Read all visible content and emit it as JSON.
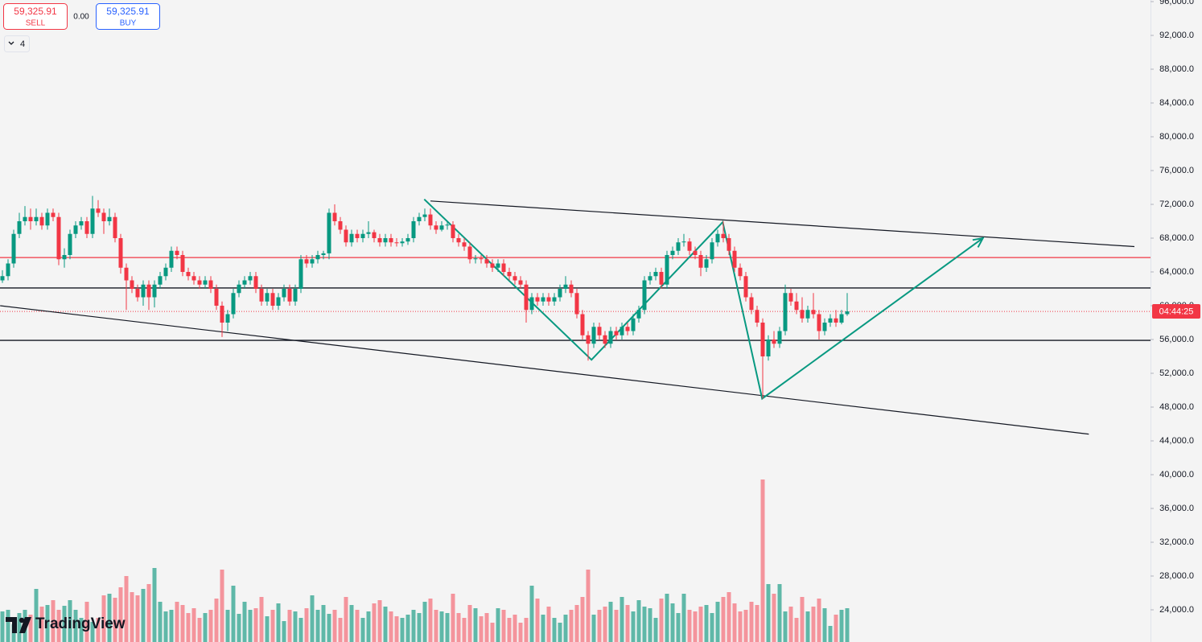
{
  "header": {
    "sell_price": "59,325.91",
    "sell_label": "SELL",
    "spread": "0.00",
    "buy_price": "59,325.91",
    "buy_label": "BUY",
    "interval_count": "4",
    "countdown": "04:44:25",
    "brand": "TradingView"
  },
  "chart_data": {
    "type": "candlestick",
    "ylim": [
      20190,
      96190
    ],
    "yticks": [
      {
        "value": 96000,
        "label": "96,000.0"
      },
      {
        "value": 92000,
        "label": "92,000.0"
      },
      {
        "value": 88000,
        "label": "88,000.0"
      },
      {
        "value": 84000,
        "label": "84,000.0"
      },
      {
        "value": 80000,
        "label": "80,000.0"
      },
      {
        "value": 76000,
        "label": "76,000.0"
      },
      {
        "value": 72000,
        "label": "72,000.0"
      },
      {
        "value": 68000,
        "label": "68,000.0"
      },
      {
        "value": 64000,
        "label": "64,000.0"
      },
      {
        "value": 60000,
        "label": "60,000.0"
      },
      {
        "value": 56000,
        "label": "56,000.0"
      },
      {
        "value": 52000,
        "label": "52,000.0"
      },
      {
        "value": 48000,
        "label": "48,000.0"
      },
      {
        "value": 44000,
        "label": "44,000.0"
      },
      {
        "value": 40000,
        "label": "40,000.0"
      },
      {
        "value": 36000,
        "label": "36,000.0"
      },
      {
        "value": 32000,
        "label": "32,000.0"
      },
      {
        "value": 28000,
        "label": "28,000.0"
      },
      {
        "value": 24000,
        "label": "24,000.0"
      }
    ],
    "grid": false,
    "up_color": "#089981",
    "down_color": "#f23645",
    "volume_up_color": "#5fb8a8",
    "volume_down_color": "#f4949c",
    "last_price": 59325.91,
    "last_price_color": "#f23645",
    "ohlc": [
      [
        63000,
        64200,
        62700,
        63500
      ],
      [
        63500,
        65500,
        63000,
        65000
      ],
      [
        65000,
        69000,
        64500,
        68500
      ],
      [
        68500,
        71000,
        68000,
        70000
      ],
      [
        70000,
        71800,
        69500,
        70500
      ],
      [
        70500,
        71500,
        69000,
        70000
      ],
      [
        70000,
        71500,
        69500,
        70500
      ],
      [
        70500,
        71000,
        69000,
        69500
      ],
      [
        69500,
        71500,
        69000,
        71000
      ],
      [
        71000,
        71500,
        70000,
        70500
      ],
      [
        70500,
        71000,
        64800,
        65500
      ],
      [
        65500,
        66800,
        64500,
        66000
      ],
      [
        66000,
        69000,
        65500,
        68500
      ],
      [
        68500,
        70000,
        68000,
        69500
      ],
      [
        69500,
        70500,
        69000,
        70000
      ],
      [
        70000,
        70500,
        68000,
        68500
      ],
      [
        68500,
        73000,
        68000,
        71500
      ],
      [
        71500,
        72500,
        70500,
        71000
      ],
      [
        71000,
        71500,
        68500,
        70000
      ],
      [
        70000,
        71500,
        69500,
        70500
      ],
      [
        70500,
        71000,
        67500,
        68000
      ],
      [
        68000,
        68500,
        63800,
        64500
      ],
      [
        64500,
        65000,
        59500,
        63000
      ],
      [
        63000,
        63500,
        61500,
        62000
      ],
      [
        62000,
        62500,
        60500,
        61000
      ],
      [
        61000,
        63000,
        60000,
        62500
      ],
      [
        62500,
        63000,
        59500,
        61000
      ],
      [
        61000,
        63000,
        59800,
        62500
      ],
      [
        62500,
        64000,
        62000,
        63500
      ],
      [
        63500,
        65000,
        63000,
        64500
      ],
      [
        64500,
        67000,
        64000,
        66500
      ],
      [
        66500,
        67000,
        65500,
        66000
      ],
      [
        66000,
        66500,
        63500,
        64000
      ],
      [
        64000,
        64500,
        63000,
        63500
      ],
      [
        63500,
        64000,
        62500,
        63000
      ],
      [
        63000,
        63500,
        62000,
        62500
      ],
      [
        62500,
        63500,
        62000,
        63000
      ],
      [
        63000,
        63500,
        61500,
        62000
      ],
      [
        62000,
        62500,
        59500,
        60000
      ],
      [
        60000,
        60500,
        56300,
        58000
      ],
      [
        58000,
        59500,
        57000,
        59000
      ],
      [
        59000,
        62000,
        58500,
        61500
      ],
      [
        61500,
        63000,
        61000,
        62500
      ],
      [
        62500,
        63500,
        62000,
        63000
      ],
      [
        63000,
        64000,
        62500,
        63500
      ],
      [
        63500,
        64000,
        61500,
        62000
      ],
      [
        62000,
        62500,
        60000,
        60500
      ],
      [
        60500,
        62000,
        60000,
        61500
      ],
      [
        61500,
        62000,
        59500,
        60000
      ],
      [
        60000,
        61500,
        59500,
        61000
      ],
      [
        61000,
        62500,
        60500,
        62000
      ],
      [
        62000,
        62500,
        60000,
        60500
      ],
      [
        60500,
        62500,
        60000,
        62000
      ],
      [
        62000,
        66000,
        61500,
        65500
      ],
      [
        65500,
        66000,
        64500,
        65000
      ],
      [
        65000,
        66000,
        64500,
        65500
      ],
      [
        65500,
        66500,
        65000,
        66000
      ],
      [
        66000,
        66500,
        65500,
        66200
      ],
      [
        66200,
        71500,
        65500,
        71000
      ],
      [
        71000,
        72000,
        69500,
        70000
      ],
      [
        70000,
        70500,
        68500,
        69000
      ],
      [
        69000,
        69500,
        67000,
        67500
      ],
      [
        67500,
        69000,
        67000,
        68500
      ],
      [
        68500,
        69000,
        67500,
        68000
      ],
      [
        68000,
        69000,
        67500,
        68500
      ],
      [
        68500,
        70000,
        68000,
        68700
      ],
      [
        68700,
        69000,
        67500,
        68000
      ],
      [
        68000,
        68500,
        67000,
        67500
      ],
      [
        67500,
        68500,
        67000,
        68000
      ],
      [
        68000,
        68500,
        67000,
        67500
      ],
      [
        67500,
        68000,
        67000,
        67400
      ],
      [
        67400,
        68000,
        67000,
        67600
      ],
      [
        67600,
        68500,
        67200,
        68000
      ],
      [
        68000,
        70500,
        67500,
        70000
      ],
      [
        70000,
        71000,
        69500,
        70500
      ],
      [
        70500,
        71500,
        70000,
        70800
      ],
      [
        70800,
        71500,
        69000,
        69500
      ],
      [
        69500,
        70000,
        68500,
        69000
      ],
      [
        69000,
        70000,
        68800,
        69500
      ],
      [
        69500,
        70000,
        69000,
        69600
      ],
      [
        69600,
        70000,
        67500,
        68000
      ],
      [
        68000,
        68500,
        67000,
        67500
      ],
      [
        67500,
        68000,
        66500,
        67000
      ],
      [
        67000,
        67500,
        65000,
        65500
      ],
      [
        65500,
        66000,
        65000,
        65600
      ],
      [
        65600,
        66000,
        65000,
        65500
      ],
      [
        65500,
        66000,
        64500,
        65000
      ],
      [
        65000,
        65500,
        64000,
        64500
      ],
      [
        64500,
        65500,
        64000,
        65000
      ],
      [
        65000,
        65500,
        63500,
        64000
      ],
      [
        64000,
        64500,
        63000,
        63500
      ],
      [
        63500,
        64000,
        62500,
        63000
      ],
      [
        63000,
        63500,
        62000,
        62500
      ],
      [
        62500,
        63000,
        58000,
        59500
      ],
      [
        59500,
        61500,
        59000,
        61000
      ],
      [
        61000,
        61500,
        60000,
        60500
      ],
      [
        60500,
        61500,
        60000,
        61000
      ],
      [
        61000,
        61500,
        60000,
        60500
      ],
      [
        60500,
        61500,
        60000,
        61000
      ],
      [
        61000,
        62500,
        60500,
        62000
      ],
      [
        62000,
        63500,
        61500,
        62500
      ],
      [
        62500,
        63000,
        61000,
        61500
      ],
      [
        61500,
        62000,
        58500,
        59000
      ],
      [
        59000,
        59500,
        56000,
        56500
      ],
      [
        56500,
        57000,
        53500,
        55500
      ],
      [
        55500,
        58000,
        55000,
        57500
      ],
      [
        57500,
        58000,
        56000,
        56500
      ],
      [
        56500,
        57000,
        55000,
        55500
      ],
      [
        55500,
        57500,
        55000,
        57000
      ],
      [
        57000,
        57500,
        56000,
        56500
      ],
      [
        56500,
        58000,
        56000,
        57500
      ],
      [
        57500,
        58000,
        56500,
        57000
      ],
      [
        57000,
        59000,
        56500,
        58500
      ],
      [
        58500,
        60000,
        58000,
        59500
      ],
      [
        59500,
        63500,
        59000,
        63000
      ],
      [
        63000,
        64000,
        62500,
        63500
      ],
      [
        63500,
        64500,
        63000,
        64000
      ],
      [
        64000,
        64500,
        62000,
        62500
      ],
      [
        62500,
        66500,
        62000,
        66000
      ],
      [
        66000,
        67000,
        65500,
        66500
      ],
      [
        66500,
        68000,
        66000,
        67500
      ],
      [
        67500,
        68500,
        67000,
        67600
      ],
      [
        67600,
        68000,
        66000,
        66500
      ],
      [
        66500,
        67000,
        65500,
        66000
      ],
      [
        66000,
        66500,
        63500,
        64500
      ],
      [
        64500,
        66000,
        64000,
        65500
      ],
      [
        65500,
        68000,
        65000,
        67500
      ],
      [
        67500,
        69000,
        67000,
        68500
      ],
      [
        68500,
        70000,
        67500,
        68000
      ],
      [
        68000,
        68500,
        66000,
        66500
      ],
      [
        66500,
        67000,
        64000,
        64500
      ],
      [
        64500,
        65000,
        63000,
        63500
      ],
      [
        63500,
        64000,
        60500,
        61000
      ],
      [
        61000,
        61500,
        59000,
        59500
      ],
      [
        59500,
        60000,
        57500,
        58000
      ],
      [
        58000,
        58500,
        49000,
        54000
      ],
      [
        54000,
        56500,
        53500,
        56000
      ],
      [
        56000,
        57000,
        55000,
        55500
      ],
      [
        55500,
        57500,
        55000,
        57000
      ],
      [
        57000,
        62500,
        56500,
        61500
      ],
      [
        61500,
        62000,
        60000,
        60500
      ],
      [
        60500,
        61500,
        59000,
        59500
      ],
      [
        59500,
        61000,
        58000,
        58500
      ],
      [
        58500,
        60000,
        58000,
        59500
      ],
      [
        59500,
        61500,
        58500,
        59000
      ],
      [
        59000,
        59500,
        56000,
        57000
      ],
      [
        57000,
        58500,
        56500,
        58000
      ],
      [
        58000,
        59000,
        57500,
        58500
      ],
      [
        58500,
        59500,
        57500,
        58000
      ],
      [
        58000,
        59500,
        57800,
        59000
      ],
      [
        59000,
        61500,
        58800,
        59325.91
      ]
    ],
    "volume": [
      38,
      40,
      22,
      36,
      40,
      34,
      66,
      44,
      46,
      52,
      40,
      45,
      52,
      40,
      30,
      50,
      25,
      30,
      58,
      60,
      55,
      68,
      82,
      62,
      58,
      66,
      72,
      92,
      50,
      38,
      40,
      50,
      46,
      36,
      42,
      30,
      36,
      40,
      54,
      90,
      40,
      70,
      35,
      50,
      40,
      42,
      56,
      32,
      40,
      48,
      26,
      40,
      38,
      30,
      42,
      58,
      40,
      46,
      35,
      40,
      30,
      56,
      46,
      40,
      30,
      38,
      48,
      52,
      44,
      38,
      32,
      30,
      34,
      40,
      36,
      50,
      54,
      40,
      38,
      36,
      60,
      36,
      30,
      46,
      42,
      32,
      36,
      24,
      42,
      40,
      30,
      34,
      24,
      30,
      70,
      54,
      34,
      44,
      30,
      24,
      34,
      40,
      46,
      56,
      90,
      34,
      40,
      44,
      50,
      40,
      56,
      46,
      38,
      52,
      44,
      42,
      30,
      54,
      60,
      48,
      36,
      60,
      40,
      38,
      44,
      46,
      36,
      50,
      56,
      62,
      48,
      38,
      40,
      50,
      46,
      202,
      72,
      60,
      72,
      38,
      44,
      30,
      56,
      38,
      44,
      54,
      42,
      20,
      34,
      40,
      42
    ],
    "vlim": [
      0,
      220
    ],
    "drawings": [
      {
        "type": "hline",
        "price": 65700,
        "color": "#f23645"
      },
      {
        "type": "hline",
        "price": 62100,
        "color": "#131722"
      },
      {
        "type": "hline",
        "price": 55900,
        "color": "#131722"
      },
      {
        "type": "polyline",
        "color": "#131722",
        "points": [
          {
            "x": 76,
            "y": 72400
          },
          {
            "x": 201,
            "y": 67000
          }
        ]
      },
      {
        "type": "polyline",
        "color": "#131722",
        "points": [
          {
            "x": -0.4,
            "y": 60000
          },
          {
            "x": 192.9,
            "y": 44800
          }
        ]
      },
      {
        "type": "polyline",
        "color": "#089981",
        "arrow": true,
        "points": [
          {
            "x": 74.9,
            "y": 72600
          },
          {
            "x": 104.6,
            "y": 53600
          },
          {
            "x": 127.9,
            "y": 69900
          },
          {
            "x": 134.9,
            "y": 49000
          },
          {
            "x": 174.1,
            "y": 68000
          }
        ]
      }
    ]
  }
}
